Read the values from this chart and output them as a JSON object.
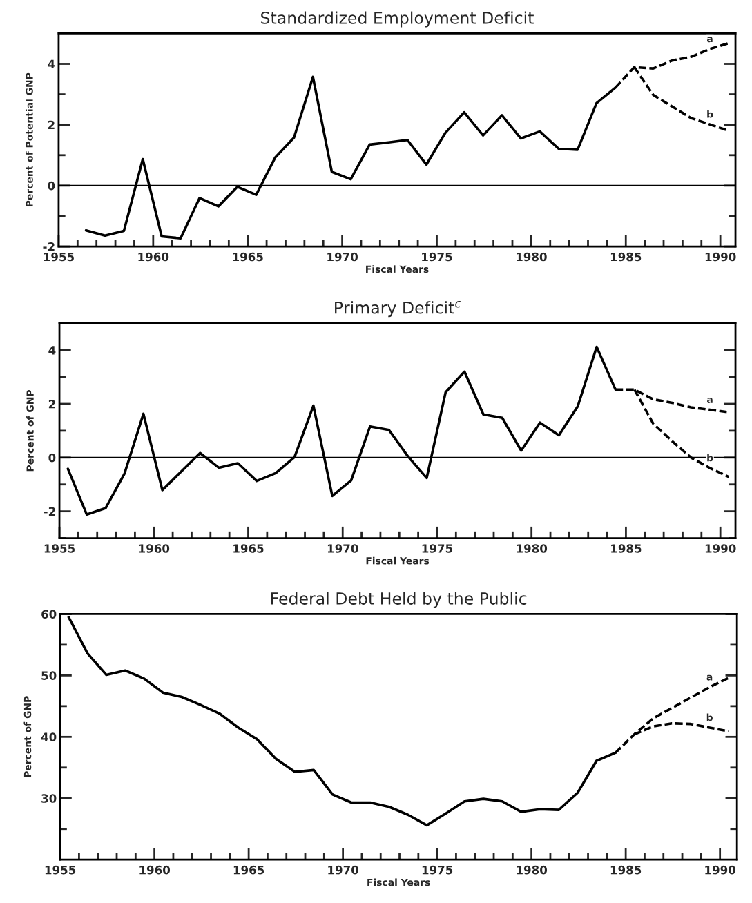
{
  "chart_data": [
    {
      "type": "line",
      "title": "Standardized Employment Deficit",
      "xlabel": "Fiscal Years",
      "ylabel": "Percent of Potential GNP",
      "xlim": [
        1955,
        1990.8
      ],
      "ylim": [
        -2,
        5
      ],
      "xticks": [
        1955,
        {
          "value": 1956,
          "label": null
        },
        {
          "value": 1957,
          "label": null
        },
        {
          "value": 1958,
          "label": null
        },
        {
          "value": 1959,
          "label": null
        },
        1960,
        {
          "value": 1961,
          "label": null
        },
        {
          "value": 1962,
          "label": null
        },
        {
          "value": 1963,
          "label": null
        },
        {
          "value": 1964,
          "label": null
        },
        1965,
        {
          "value": 1966,
          "label": null
        },
        {
          "value": 1967,
          "label": null
        },
        {
          "value": 1968,
          "label": null
        },
        {
          "value": 1969,
          "label": null
        },
        1970,
        {
          "value": 1971,
          "label": null
        },
        {
          "value": 1972,
          "label": null
        },
        {
          "value": 1973,
          "label": null
        },
        {
          "value": 1974,
          "label": null
        },
        1975,
        {
          "value": 1976,
          "label": null
        },
        {
          "value": 1977,
          "label": null
        },
        {
          "value": 1978,
          "label": null
        },
        {
          "value": 1979,
          "label": null
        },
        1980,
        {
          "value": 1981,
          "label": null
        },
        {
          "value": 1982,
          "label": null
        },
        {
          "value": 1983,
          "label": null
        },
        {
          "value": 1984,
          "label": null
        },
        1985,
        {
          "value": 1986,
          "label": null
        },
        {
          "value": 1987,
          "label": null
        },
        {
          "value": 1988,
          "label": null
        },
        {
          "value": 1989,
          "label": null
        },
        1990
      ],
      "yticks": [
        -2,
        {
          "value": -1,
          "label": null
        },
        0,
        {
          "value": 1,
          "label": null
        },
        2,
        {
          "value": 3,
          "label": null
        },
        4
      ],
      "ref_lines": [
        {
          "axis": "y",
          "value": 0,
          "color": "#000000"
        }
      ],
      "series": [
        {
          "color": "#000000",
          "line_style": "solid",
          "x": [
            1956.45,
            1957.45,
            1958.45,
            1959.45,
            1960.45,
            1961.45,
            1962.45,
            1963.45,
            1964.45,
            1965.45,
            1966.45,
            1967.45,
            1968.45,
            1969.45,
            1970.45,
            1971.45,
            1972.45,
            1973.45,
            1974.45,
            1975.45,
            1976.45,
            1977.45,
            1978.45,
            1979.45,
            1980.45,
            1981.45,
            1982.45,
            1983.45,
            1984.45
          ],
          "values": [
            -1.47,
            -1.64,
            -1.49,
            0.87,
            -1.67,
            -1.73,
            -0.41,
            -0.68,
            -0.04,
            -0.3,
            0.92,
            1.58,
            3.57,
            0.45,
            0.21,
            1.35,
            1.42,
            1.5,
            0.69,
            1.73,
            2.41,
            1.65,
            2.31,
            1.55,
            1.78,
            1.21,
            1.18,
            2.71,
            3.22
          ]
        },
        {
          "name": "a",
          "color": "#000000",
          "line_style": "dashed",
          "x": [
            1984.45,
            1985.45,
            1986.45,
            1987.45,
            1988.45,
            1989.45,
            1990.45
          ],
          "values": [
            3.22,
            3.89,
            3.85,
            4.11,
            4.23,
            4.49,
            4.68
          ]
        },
        {
          "name": "b",
          "color": "#000000",
          "line_style": "dashed",
          "x": [
            1985.45,
            1986.45,
            1987.45,
            1988.45,
            1989.45,
            1990.45
          ],
          "values": [
            3.89,
            2.98,
            2.6,
            2.22,
            2.01,
            1.8
          ]
        }
      ]
    },
    {
      "type": "line",
      "title": "Primary Deficit$^{c}$",
      "xlabel": "Fiscal Years",
      "ylabel": "Percent of GNP",
      "xlim": [
        1955,
        1990.8
      ],
      "ylim": [
        -3,
        5
      ],
      "xticks": [
        1955,
        {
          "value": 1956,
          "label": null
        },
        {
          "value": 1957,
          "label": null
        },
        {
          "value": 1958,
          "label": null
        },
        {
          "value": 1959,
          "label": null
        },
        1960,
        {
          "value": 1961,
          "label": null
        },
        {
          "value": 1962,
          "label": null
        },
        {
          "value": 1963,
          "label": null
        },
        {
          "value": 1964,
          "label": null
        },
        1965,
        {
          "value": 1966,
          "label": null
        },
        {
          "value": 1967,
          "label": null
        },
        {
          "value": 1968,
          "label": null
        },
        {
          "value": 1969,
          "label": null
        },
        1970,
        {
          "value": 1971,
          "label": null
        },
        {
          "value": 1972,
          "label": null
        },
        {
          "value": 1973,
          "label": null
        },
        {
          "value": 1974,
          "label": null
        },
        1975,
        {
          "value": 1976,
          "label": null
        },
        {
          "value": 1977,
          "label": null
        },
        {
          "value": 1978,
          "label": null
        },
        {
          "value": 1979,
          "label": null
        },
        1980,
        {
          "value": 1981,
          "label": null
        },
        {
          "value": 1982,
          "label": null
        },
        {
          "value": 1983,
          "label": null
        },
        {
          "value": 1984,
          "label": null
        },
        1985,
        {
          "value": 1986,
          "label": null
        },
        {
          "value": 1987,
          "label": null
        },
        {
          "value": 1988,
          "label": null
        },
        {
          "value": 1989,
          "label": null
        },
        1990
      ],
      "yticks": [
        {
          "value": -3,
          "label": null
        },
        -2,
        {
          "value": -1,
          "label": null
        },
        0,
        {
          "value": 1,
          "label": null
        },
        2,
        {
          "value": 3,
          "label": null
        },
        4
      ],
      "ref_lines": [
        {
          "axis": "y",
          "value": 0,
          "color": "#000000"
        }
      ],
      "series": [
        {
          "color": "#000000",
          "line_style": "solid",
          "x": [
            1955.45,
            1956.45,
            1957.45,
            1958.45,
            1959.45,
            1960.45,
            1962.45,
            1963.45,
            1964.45,
            1965.45,
            1966.45,
            1967.45,
            1968.45,
            1969.45,
            1970.45,
            1971.45,
            1972.45,
            1973.45,
            1974.45,
            1975.45,
            1976.45,
            1977.45,
            1978.45,
            1979.45,
            1980.45,
            1981.45,
            1982.45,
            1983.45,
            1984.45
          ],
          "values": [
            -0.42,
            -2.12,
            -1.88,
            -0.59,
            1.63,
            -1.21,
            0.17,
            -0.38,
            -0.21,
            -0.87,
            -0.58,
            0.02,
            1.93,
            -1.43,
            -0.85,
            1.16,
            1.03,
            0.05,
            -0.76,
            2.43,
            3.2,
            1.61,
            1.48,
            0.26,
            1.3,
            0.83,
            1.91,
            4.12,
            2.53
          ]
        },
        {
          "name": "a",
          "color": "#000000",
          "line_style": "dashed",
          "x": [
            1984.45,
            1985.45,
            1986.45,
            1987.45,
            1988.45,
            1989.45,
            1990.45
          ],
          "values": [
            2.53,
            2.53,
            2.17,
            2.04,
            1.87,
            1.78,
            1.69
          ]
        },
        {
          "name": "b",
          "color": "#000000",
          "line_style": "dashed",
          "x": [
            1985.45,
            1986.45,
            1987.45,
            1988.45,
            1989.45,
            1990.45
          ],
          "values": [
            2.53,
            1.26,
            0.61,
            0.0,
            -0.39,
            -0.72
          ]
        }
      ]
    },
    {
      "type": "line",
      "title": "Federal Debt Held by the Public",
      "xlabel": "Fiscal Years",
      "ylabel": "Percent of GNP",
      "xlim": [
        1955,
        1990.9
      ],
      "ylim": [
        20,
        60
      ],
      "xticks": [
        1955,
        {
          "value": 1956,
          "label": null
        },
        {
          "value": 1957,
          "label": null
        },
        {
          "value": 1958,
          "label": null
        },
        {
          "value": 1959,
          "label": null
        },
        1960,
        {
          "value": 1961,
          "label": null
        },
        {
          "value": 1962,
          "label": null
        },
        {
          "value": 1963,
          "label": null
        },
        {
          "value": 1964,
          "label": null
        },
        1965,
        {
          "value": 1966,
          "label": null
        },
        {
          "value": 1967,
          "label": null
        },
        {
          "value": 1968,
          "label": null
        },
        {
          "value": 1969,
          "label": null
        },
        1970,
        {
          "value": 1971,
          "label": null
        },
        {
          "value": 1972,
          "label": null
        },
        {
          "value": 1973,
          "label": null
        },
        {
          "value": 1974,
          "label": null
        },
        1975,
        {
          "value": 1976,
          "label": null
        },
        {
          "value": 1977,
          "label": null
        },
        {
          "value": 1978,
          "label": null
        },
        {
          "value": 1979,
          "label": null
        },
        1980,
        {
          "value": 1981,
          "label": null
        },
        {
          "value": 1982,
          "label": null
        },
        {
          "value": 1983,
          "label": null
        },
        {
          "value": 1984,
          "label": null
        },
        1985,
        {
          "value": 1986,
          "label": null
        },
        {
          "value": 1987,
          "label": null
        },
        {
          "value": 1988,
          "label": null
        },
        {
          "value": 1989,
          "label": null
        },
        1990
      ],
      "yticks": [
        {
          "value": 25,
          "label": null
        },
        30,
        {
          "value": 35,
          "label": null
        },
        40,
        {
          "value": 45,
          "label": null
        },
        50,
        {
          "value": 55,
          "label": null
        },
        60
      ],
      "series": [
        {
          "color": "#000000",
          "line_style": "solid",
          "x": [
            1955.45,
            1956.45,
            1957.45,
            1958.45,
            1959.45,
            1960.45,
            1961.45,
            1962.45,
            1963.45,
            1964.45,
            1965.45,
            1966.45,
            1967.45,
            1968.45,
            1969.45,
            1970.45,
            1971.45,
            1972.45,
            1973.45,
            1974.45,
            1975.45,
            1976.45,
            1977.45,
            1978.45,
            1979.45,
            1980.45,
            1981.45,
            1982.45,
            1983.45,
            1984.45
          ],
          "values": [
            59.5,
            53.6,
            50.1,
            50.8,
            49.5,
            47.2,
            46.5,
            45.2,
            43.8,
            41.5,
            39.6,
            36.4,
            34.3,
            34.6,
            30.6,
            29.3,
            29.3,
            28.6,
            27.3,
            25.6,
            27.5,
            29.5,
            29.9,
            29.5,
            27.8,
            28.2,
            28.1,
            30.9,
            36.1,
            37.4
          ]
        },
        {
          "name": "a",
          "color": "#000000",
          "line_style": "dashed",
          "x": [
            1984.45,
            1985.45,
            1986.45,
            1987.45,
            1988.45,
            1989.45,
            1990.45
          ],
          "values": [
            37.4,
            40.4,
            43.0,
            44.7,
            46.4,
            48.1,
            49.6
          ]
        },
        {
          "name": "b",
          "color": "#000000",
          "line_style": "dashed",
          "x": [
            1985.45,
            1986.45,
            1987.45,
            1988.45,
            1989.45,
            1990.45
          ],
          "values": [
            40.4,
            41.7,
            42.2,
            42.1,
            41.5,
            40.9
          ]
        }
      ]
    }
  ]
}
